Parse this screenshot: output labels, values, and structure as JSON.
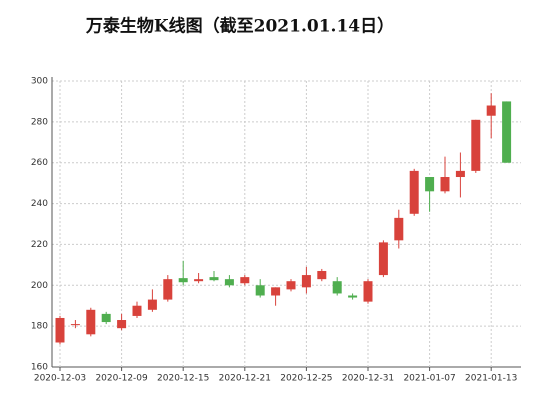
{
  "chart_data": {
    "type": "candlestick",
    "title": "万泰生物K线图（截至2021.01.14日）",
    "categories": [
      "2020-12-03",
      null,
      null,
      null,
      "2020-12-09",
      null,
      null,
      null,
      "2020-12-15",
      null,
      null,
      null,
      "2020-12-21",
      null,
      null,
      null,
      "2020-12-25",
      null,
      null,
      null,
      "2020-12-31",
      null,
      null,
      null,
      "2021-01-07",
      null,
      null,
      null,
      "2021-01-13",
      null
    ],
    "open": [
      172,
      180.5,
      176,
      186,
      179,
      185,
      188,
      193,
      203.5,
      202,
      204,
      203,
      201,
      200,
      195,
      198,
      199,
      203,
      202,
      195,
      192,
      205,
      222,
      235,
      253,
      246,
      253,
      256,
      283,
      290
    ],
    "high": [
      185,
      183,
      189,
      187,
      186,
      192,
      198,
      205,
      212,
      206,
      207,
      205,
      205,
      203,
      199,
      203,
      209,
      208,
      204,
      196,
      203,
      222,
      237,
      257,
      253,
      263,
      265,
      281,
      294,
      290
    ],
    "low": [
      171,
      179,
      175,
      181,
      178,
      184,
      187,
      192,
      200,
      201,
      202,
      199,
      200,
      194,
      190,
      197,
      196,
      202,
      195,
      193,
      191,
      204,
      218,
      234,
      236,
      245,
      243,
      255,
      272,
      260
    ],
    "close": [
      184,
      181,
      188,
      182,
      183,
      190,
      193,
      203,
      201.5,
      203,
      202.5,
      200,
      204,
      195,
      199,
      202,
      205,
      207,
      196,
      194,
      202,
      221,
      233,
      256,
      246,
      253,
      256,
      281,
      288,
      260
    ],
    "up_color": "#d8423b",
    "down_color": "#4fae4f",
    "ylim": [
      160,
      300
    ],
    "yticks": [
      160,
      180,
      200,
      220,
      240,
      260,
      280,
      300
    ],
    "grid": true
  }
}
